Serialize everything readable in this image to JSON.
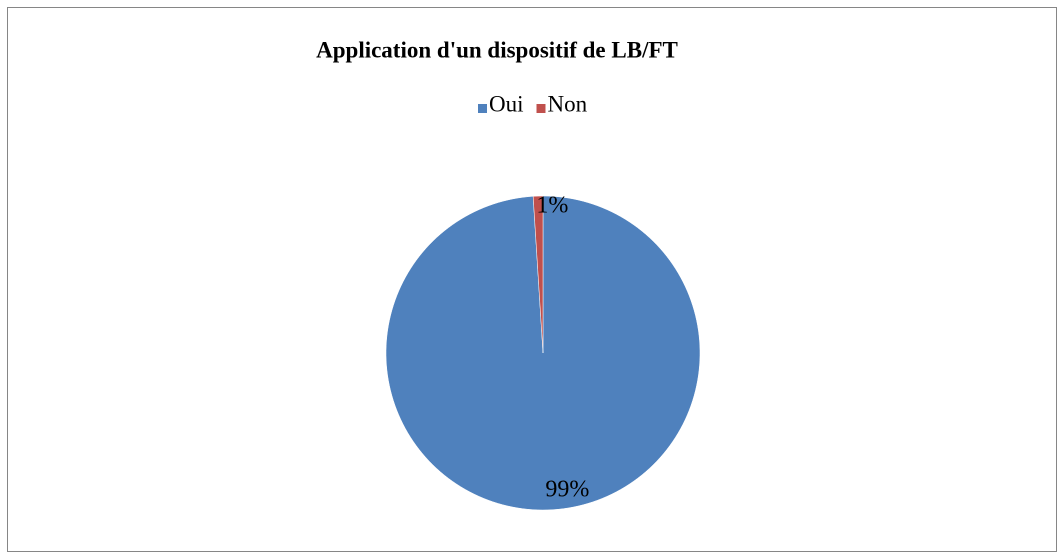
{
  "chart_data": {
    "type": "pie",
    "title": "Application d'un dispositif de LB/FT",
    "categories": [
      "Oui",
      "Non"
    ],
    "values": [
      99,
      1
    ],
    "value_labels": [
      "99%",
      "1%"
    ],
    "colors": [
      "#4f81bd",
      "#c0504d"
    ]
  }
}
